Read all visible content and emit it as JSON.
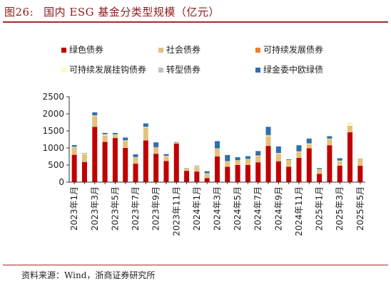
{
  "figure": {
    "number": "图26:",
    "title": "国内 ESG 基金分类型规模（亿元）",
    "source": "资料来源：Wind，浙商证券研究所"
  },
  "chart_data": {
    "type": "bar",
    "stacked": true,
    "ylim": [
      0,
      2500
    ],
    "yticks": [
      0,
      500,
      1000,
      1500,
      2000,
      2500
    ],
    "grid": false,
    "legend_position": "top",
    "categories": [
      "2023年1月",
      "2023年2月",
      "2023年3月",
      "2023年4月",
      "2023年5月",
      "2023年6月",
      "2023年7月",
      "2023年8月",
      "2023年9月",
      "2023年10月",
      "2023年11月",
      "2023年12月",
      "2024年1月",
      "2024年2月",
      "2024年3月",
      "2024年4月",
      "2024年5月",
      "2024年6月",
      "2024年7月",
      "2024年8月",
      "2024年9月",
      "2024年10月",
      "2024年11月",
      "2024年12月",
      "2025年1月",
      "2025年2月",
      "2025年3月",
      "2025年4月",
      "2025年5月"
    ],
    "tick_labels": [
      "2023年1月",
      "2023年3月",
      "2023年5月",
      "2023年7月",
      "2023年9月",
      "2023年11月",
      "2024年1月",
      "2024年3月",
      "2024年5月",
      "2024年7月",
      "2024年9月",
      "2024年11月",
      "2025年1月",
      "2025年3月",
      "2025年5月"
    ],
    "series": [
      {
        "name": "绿色债券",
        "color": "#c00000",
        "values": [
          800,
          590,
          1620,
          1180,
          1290,
          1000,
          540,
          1220,
          830,
          620,
          1130,
          330,
          310,
          120,
          750,
          450,
          500,
          500,
          580,
          1060,
          610,
          450,
          710,
          990,
          240,
          1080,
          480,
          1460,
          480
        ]
      },
      {
        "name": "社会债券",
        "color": "#e3c27e",
        "values": [
          200,
          220,
          300,
          180,
          90,
          190,
          170,
          360,
          170,
          110,
          20,
          60,
          130,
          120,
          200,
          140,
          120,
          160,
          160,
          270,
          210,
          180,
          150,
          110,
          120,
          170,
          120,
          180,
          200
        ]
      },
      {
        "name": "可持续发展债券",
        "color": "#ed7d31",
        "values": [
          10,
          5,
          10,
          5,
          5,
          10,
          10,
          10,
          10,
          10,
          5,
          5,
          5,
          5,
          10,
          10,
          5,
          5,
          10,
          10,
          5,
          5,
          10,
          5,
          5,
          5,
          5,
          10,
          5
        ]
      },
      {
        "name": "可持续发展挂钩债券",
        "color": "#ffffb3",
        "values": [
          20,
          20,
          20,
          30,
          10,
          20,
          10,
          20,
          10,
          20,
          5,
          5,
          20,
          10,
          10,
          10,
          10,
          10,
          20,
          20,
          20,
          10,
          20,
          20,
          10,
          10,
          20,
          60,
          30
        ]
      },
      {
        "name": "转型债券",
        "color": "#bfbfbf",
        "values": [
          5,
          5,
          5,
          5,
          5,
          5,
          5,
          10,
          5,
          10,
          5,
          5,
          5,
          5,
          20,
          5,
          5,
          5,
          10,
          20,
          10,
          5,
          10,
          10,
          5,
          10,
          5,
          10,
          5
        ]
      },
      {
        "name": "绿金委中欧绿债",
        "color": "#2e6fae",
        "values": [
          50,
          10,
          90,
          40,
          40,
          80,
          80,
          100,
          140,
          50,
          10,
          5,
          10,
          60,
          210,
          180,
          90,
          80,
          130,
          240,
          190,
          20,
          180,
          140,
          30,
          70,
          70,
          0,
          0
        ]
      }
    ]
  }
}
